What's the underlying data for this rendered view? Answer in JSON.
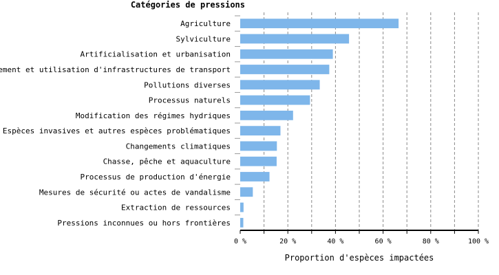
{
  "chart_data": {
    "type": "bar",
    "orientation": "horizontal",
    "title": "Catégories de pressions",
    "xlabel": "Proportion d'espèces impactées",
    "ylabel": "",
    "xlim": [
      0,
      100
    ],
    "x_ticks": [
      "0 %",
      "20 %",
      "40 %",
      "60 %",
      "80 %",
      "100 %"
    ],
    "grid": "vertical dashed",
    "bar_color": "#7eb6ea",
    "categories": [
      "Agriculture",
      "Sylviculture",
      "Artificialisation et urbanisation",
      "Aménagement et utilisation d'infrastructures de transport",
      "Pollutions diverses",
      "Processus naturels",
      "Modification des régimes hydriques",
      "Espèces invasives et autres espèces problématiques",
      "Changements climatiques",
      "Chasse, pêche et aquaculture",
      "Processus de production d'énergie",
      "Mesures de sécurité ou actes de vandalisme",
      "Extraction de ressources",
      "Pressions inconnues ou hors frontières"
    ],
    "values": [
      66.5,
      45.7,
      38.9,
      37.4,
      33.4,
      29.3,
      22.2,
      16.9,
      15.4,
      15.3,
      12.3,
      5.3,
      1.4,
      1.3
    ]
  }
}
